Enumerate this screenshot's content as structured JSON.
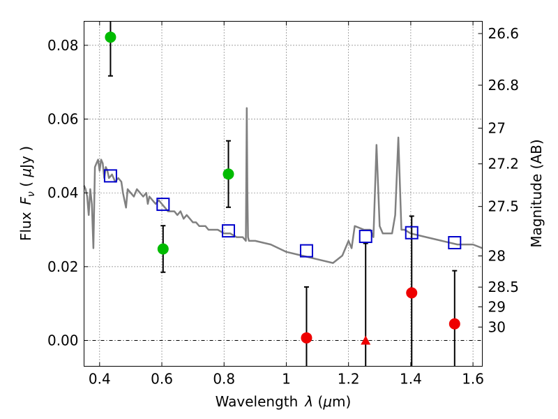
{
  "chart_data": {
    "type": "scatter",
    "xlabel_text": "Wavelength",
    "xlabel_symbol": "λ",
    "xlabel_unit_open": " (",
    "xlabel_unit_mu": "μ",
    "xlabel_unit_close": "m)",
    "ylabel_text": "Flux",
    "ylabel_symbol": "F",
    "ylabel_sub": "ν",
    "ylabel_unit_open": " ( ",
    "ylabel_unit_mu": "μ",
    "ylabel_unit_close": "Jy )",
    "y2label": "Magnitude (AB)",
    "xlim": [
      0.35,
      1.63
    ],
    "ylim": [
      -0.007,
      0.0865
    ],
    "grid": true,
    "x_ticks": [
      {
        "value": 0.4,
        "label": "0.4"
      },
      {
        "value": 0.6,
        "label": "0.6"
      },
      {
        "value": 0.8,
        "label": "0.8"
      },
      {
        "value": 1.0,
        "label": "1"
      },
      {
        "value": 1.2,
        "label": "1.2"
      },
      {
        "value": 1.4,
        "label": "1.4"
      },
      {
        "value": 1.6,
        "label": "1.6"
      }
    ],
    "y_ticks": [
      {
        "value": 0.0,
        "label": "0.00"
      },
      {
        "value": 0.02,
        "label": "0.02"
      },
      {
        "value": 0.04,
        "label": "0.04"
      },
      {
        "value": 0.06,
        "label": "0.06"
      },
      {
        "value": 0.08,
        "label": "0.08"
      }
    ],
    "mag_ticks": [
      {
        "value": 26.6,
        "label": "26.6"
      },
      {
        "value": 26.8,
        "label": "26.8"
      },
      {
        "value": 27.0,
        "label": "27"
      },
      {
        "value": 27.2,
        "label": "27.2"
      },
      {
        "value": 27.5,
        "label": "27.5"
      },
      {
        "value": 28.0,
        "label": "28"
      },
      {
        "value": 28.5,
        "label": "28.5"
      },
      {
        "value": 29.0,
        "label": "29"
      },
      {
        "value": 30.0,
        "label": "30"
      }
    ],
    "series": [
      {
        "marker": "line",
        "color": "#808080",
        "x": [
          0.35,
          0.355,
          0.36,
          0.365,
          0.37,
          0.375,
          0.38,
          0.385,
          0.39,
          0.395,
          0.4,
          0.405,
          0.41,
          0.415,
          0.42,
          0.425,
          0.43,
          0.44,
          0.45,
          0.46,
          0.47,
          0.475,
          0.48,
          0.485,
          0.49,
          0.5,
          0.51,
          0.52,
          0.53,
          0.54,
          0.55,
          0.555,
          0.56,
          0.57,
          0.58,
          0.59,
          0.6,
          0.61,
          0.62,
          0.63,
          0.64,
          0.65,
          0.66,
          0.67,
          0.68,
          0.69,
          0.7,
          0.71,
          0.72,
          0.73,
          0.74,
          0.75,
          0.76,
          0.78,
          0.8,
          0.82,
          0.84,
          0.86,
          0.87,
          0.873,
          0.875,
          0.877,
          0.88,
          0.9,
          0.95,
          1.0,
          1.05,
          1.1,
          1.15,
          1.18,
          1.2,
          1.21,
          1.22,
          1.25,
          1.27,
          1.28,
          1.29,
          1.3,
          1.31,
          1.34,
          1.35,
          1.36,
          1.37,
          1.38,
          1.4,
          1.45,
          1.5,
          1.55,
          1.58,
          1.6,
          1.63
        ],
        "y": [
          0.042,
          0.041,
          0.039,
          0.034,
          0.041,
          0.037,
          0.025,
          0.047,
          0.048,
          0.049,
          0.046,
          0.049,
          0.048,
          0.044,
          0.047,
          0.046,
          0.044,
          0.045,
          0.043,
          0.044,
          0.043,
          0.04,
          0.038,
          0.036,
          0.041,
          0.04,
          0.039,
          0.041,
          0.04,
          0.039,
          0.04,
          0.037,
          0.039,
          0.038,
          0.037,
          0.038,
          0.037,
          0.036,
          0.035,
          0.035,
          0.035,
          0.034,
          0.035,
          0.033,
          0.034,
          0.033,
          0.032,
          0.032,
          0.031,
          0.031,
          0.031,
          0.03,
          0.03,
          0.03,
          0.029,
          0.029,
          0.028,
          0.028,
          0.027,
          0.063,
          0.04,
          0.028,
          0.027,
          0.027,
          0.026,
          0.024,
          0.023,
          0.022,
          0.021,
          0.023,
          0.027,
          0.025,
          0.031,
          0.03,
          0.03,
          0.028,
          0.053,
          0.031,
          0.029,
          0.029,
          0.034,
          0.055,
          0.03,
          0.03,
          0.029,
          0.028,
          0.027,
          0.026,
          0.026,
          0.026,
          0.025
        ]
      },
      {
        "marker": "open-square",
        "color": "#0000cc",
        "x": [
          0.435,
          0.604,
          0.814,
          1.065,
          1.255,
          1.403,
          1.541
        ],
        "y": [
          0.0446,
          0.0369,
          0.0297,
          0.0243,
          0.0282,
          0.0292,
          0.0265
        ]
      },
      {
        "marker": "filled-circle",
        "color": "#00bb00",
        "x": [
          0.435,
          0.604,
          0.814
        ],
        "y": [
          0.0822,
          0.0248,
          0.0451
        ],
        "err": [
          0.0105,
          0.0063,
          0.009
        ]
      },
      {
        "marker": "filled-circle",
        "color": "#ee0000",
        "x": [
          1.065,
          1.403,
          1.541
        ],
        "y": [
          0.0007,
          0.0129,
          0.0045
        ],
        "err": [
          0.0138,
          0.0208,
          0.0144
        ]
      },
      {
        "marker": "filled-triangle",
        "color": "#ee0000",
        "x": [
          1.255
        ],
        "y": [
          0.0
        ],
        "err": [
          0.0263
        ]
      }
    ]
  }
}
